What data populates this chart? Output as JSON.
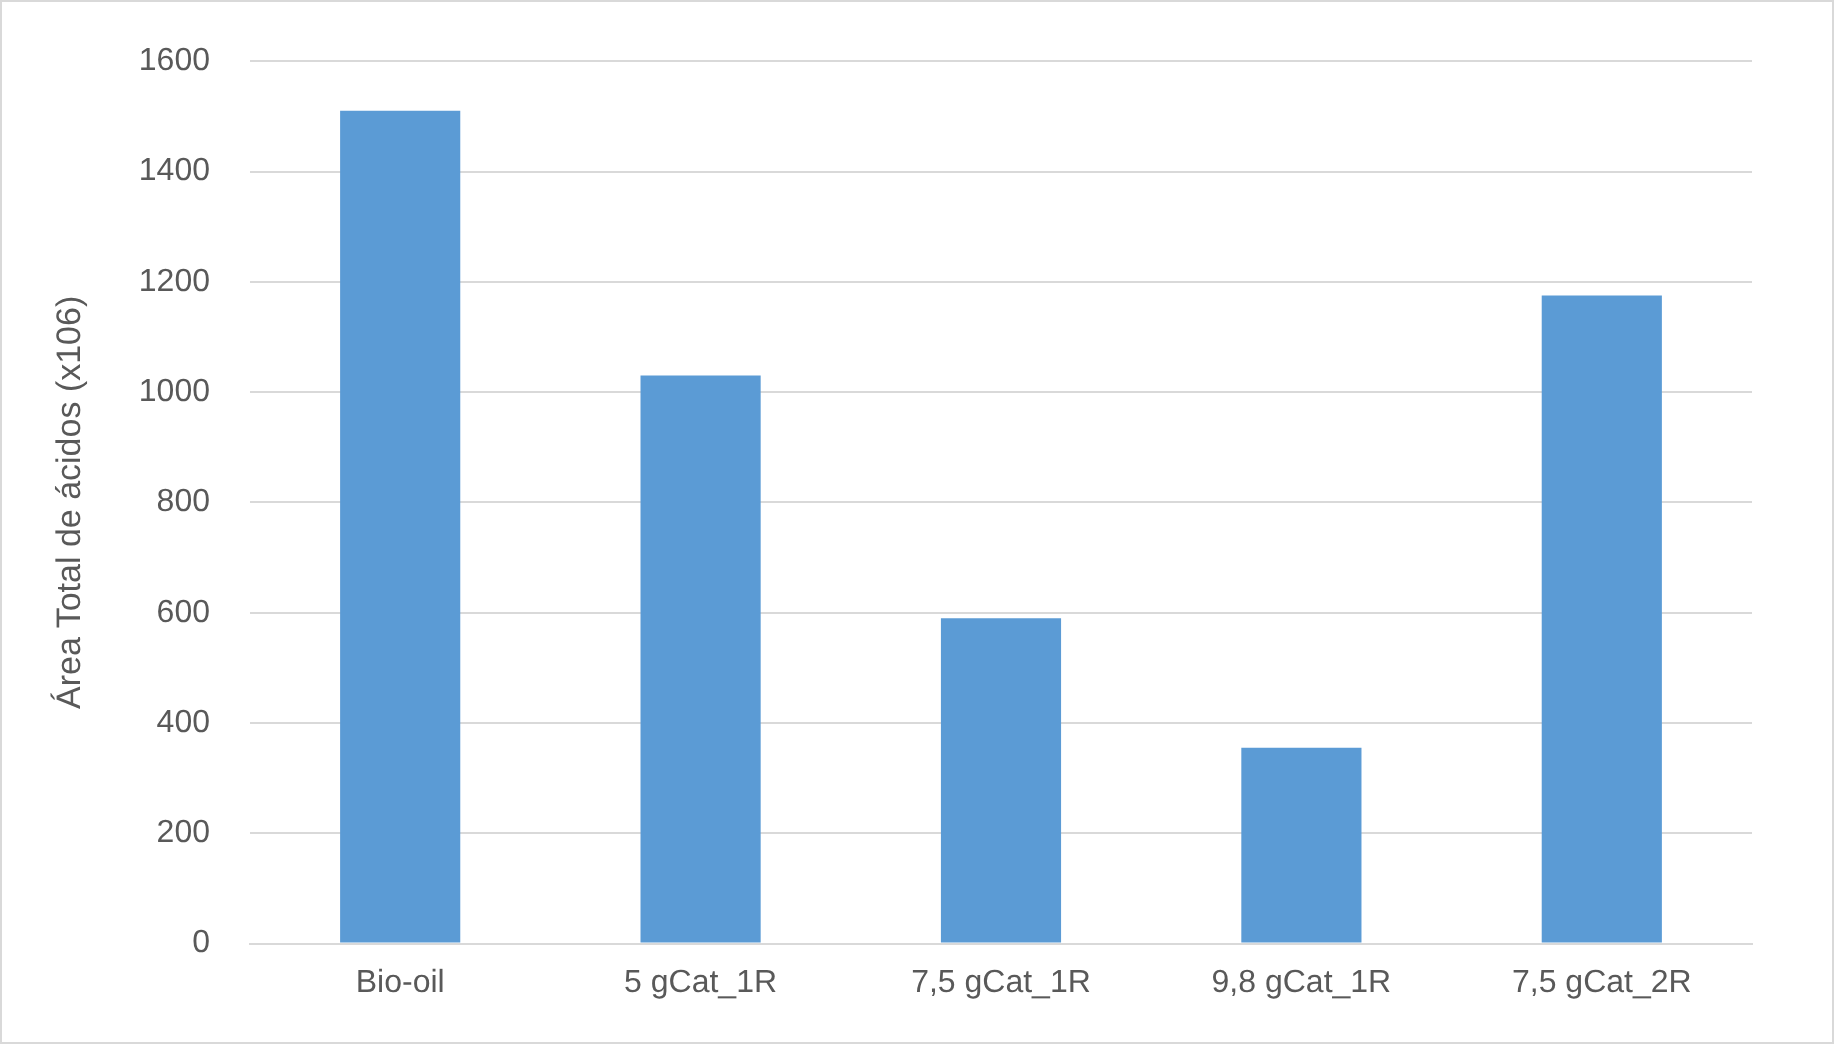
{
  "chart_data": {
    "type": "bar",
    "ylabel": "Área Total de ácidos (x106)",
    "categories": [
      "Bio-oil",
      "5 gCat_1R",
      "7,5 gCat_1R",
      "9,8 gCat_1R",
      "7,5 gCat_2R"
    ],
    "values": [
      1510,
      1030,
      590,
      355,
      1175
    ],
    "color": "#5b9bd5",
    "ylim": [
      0,
      1600
    ],
    "yticks": [
      0,
      200,
      400,
      600,
      800,
      1000,
      1200,
      1400,
      1600
    ],
    "grid": "y",
    "legend": false
  }
}
